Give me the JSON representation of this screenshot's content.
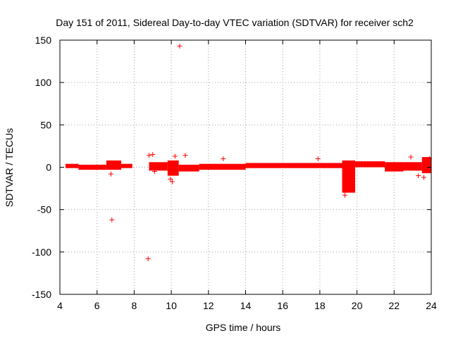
{
  "chart_data": {
    "type": "scatter",
    "title": "Day 151 of 2011, Sidereal Day-to-day VTEC variation (SDTVAR) for receiver sch2",
    "xlabel": "GPS time / hours",
    "ylabel": "SDTVAR / TECUs",
    "xlim": [
      4,
      24
    ],
    "ylim": [
      -150,
      150
    ],
    "xticks": [
      4,
      6,
      8,
      10,
      12,
      14,
      16,
      18,
      20,
      22,
      24
    ],
    "yticks": [
      -150,
      -100,
      -50,
      0,
      50,
      100,
      150
    ],
    "xtick_labels": [
      "4",
      "6",
      "8",
      "10",
      "12",
      "14",
      "16",
      "18",
      "20",
      "22",
      "24"
    ],
    "ytick_labels": [
      "-150",
      "-100",
      "-50",
      "0",
      "50",
      "100",
      "150"
    ],
    "grid": true,
    "marker": "+",
    "color": "#ff0000",
    "series": [
      {
        "name": "SDTVAR",
        "bands": [
          {
            "x0": 4.3,
            "x1": 5.0,
            "y0": -1.0,
            "y1": 4.0
          },
          {
            "x0": 5.0,
            "x1": 6.5,
            "y0": -3.0,
            "y1": 3.0
          },
          {
            "x0": 6.5,
            "x1": 7.3,
            "y0": -3.0,
            "y1": 8.0
          },
          {
            "x0": 7.3,
            "x1": 7.9,
            "y0": -1.0,
            "y1": 4.0
          },
          {
            "x0": 8.8,
            "x1": 9.8,
            "y0": -4.0,
            "y1": 6.0
          },
          {
            "x0": 9.8,
            "x1": 10.4,
            "y0": -10.0,
            "y1": 8.0
          },
          {
            "x0": 10.4,
            "x1": 11.5,
            "y0": -5.0,
            "y1": 3.0
          },
          {
            "x0": 11.5,
            "x1": 14.0,
            "y0": -3.0,
            "y1": 4.0
          },
          {
            "x0": 14.0,
            "x1": 19.2,
            "y0": -1.0,
            "y1": 5.0
          },
          {
            "x0": 19.2,
            "x1": 19.9,
            "y0": -30.0,
            "y1": 8.0
          },
          {
            "x0": 19.9,
            "x1": 21.5,
            "y0": 0.0,
            "y1": 7.0
          },
          {
            "x0": 21.5,
            "x1": 22.5,
            "y0": -5.0,
            "y1": 6.0
          },
          {
            "x0": 22.5,
            "x1": 23.5,
            "y0": -4.0,
            "y1": 6.0
          },
          {
            "x0": 23.5,
            "x1": 24.0,
            "y0": -7.0,
            "y1": 12.0
          }
        ],
        "outliers": [
          {
            "x": 6.8,
            "y": -62
          },
          {
            "x": 6.75,
            "y": -8
          },
          {
            "x": 8.75,
            "y": -108
          },
          {
            "x": 8.8,
            "y": 14
          },
          {
            "x": 9.0,
            "y": 15
          },
          {
            "x": 9.1,
            "y": -5
          },
          {
            "x": 9.95,
            "y": -14
          },
          {
            "x": 10.05,
            "y": -17
          },
          {
            "x": 10.2,
            "y": 13
          },
          {
            "x": 10.45,
            "y": 143
          },
          {
            "x": 10.75,
            "y": 14
          },
          {
            "x": 12.8,
            "y": 10
          },
          {
            "x": 17.9,
            "y": 10
          },
          {
            "x": 19.35,
            "y": -33
          },
          {
            "x": 22.9,
            "y": 12
          },
          {
            "x": 23.3,
            "y": -10
          },
          {
            "x": 23.6,
            "y": -12
          },
          {
            "x": 23.9,
            "y": 10
          }
        ]
      }
    ]
  }
}
